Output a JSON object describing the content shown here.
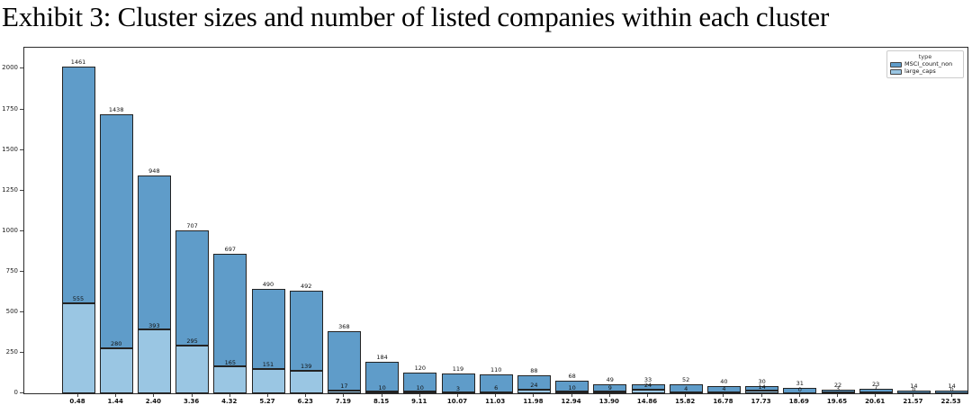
{
  "title": "Exhibit 3: Cluster sizes and number of listed companies within each cluster",
  "legend": {
    "title": "type",
    "items": [
      {
        "label": "MSCI_count_non",
        "color": "#5f9cc9"
      },
      {
        "label": "large_caps",
        "color": "#9ac6e3"
      }
    ]
  },
  "chart_data": {
    "type": "bar",
    "stacked": true,
    "title": "Exhibit 3: Cluster sizes and number of listed companies within each cluster",
    "xlabel": "",
    "ylabel": "",
    "grid": false,
    "legend_position": "upper right",
    "ylim": [
      0,
      2130
    ],
    "yticks": [
      0,
      250,
      500,
      750,
      1000,
      1250,
      1500,
      1750,
      2000
    ],
    "categories": [
      "0.48",
      "1.44",
      "2.40",
      "3.36",
      "4.32",
      "5.27",
      "6.23",
      "7.19",
      "8.15",
      "9.11",
      "10.07",
      "11.03",
      "11.98",
      "12.94",
      "13.90",
      "14.86",
      "15.82",
      "16.78",
      "17.73",
      "18.69",
      "19.65",
      "20.61",
      "21.57",
      "22.53"
    ],
    "series": [
      {
        "name": "large_caps",
        "color": "#9ac6e3",
        "values": [
          555,
          280,
          393,
          295,
          165,
          151,
          139,
          17,
          10,
          10,
          3,
          6,
          24,
          10,
          9,
          24,
          4,
          4,
          14,
          0,
          3,
          7,
          0,
          0
        ]
      },
      {
        "name": "MSCI_count_non",
        "color": "#5f9cc9",
        "values": [
          1461,
          1438,
          948,
          707,
          697,
          490,
          492,
          368,
          184,
          120,
          119,
          110,
          88,
          68,
          49,
          33,
          52,
          40,
          30,
          31,
          22,
          23,
          14,
          14
        ]
      }
    ],
    "bar_value_labels": true
  }
}
